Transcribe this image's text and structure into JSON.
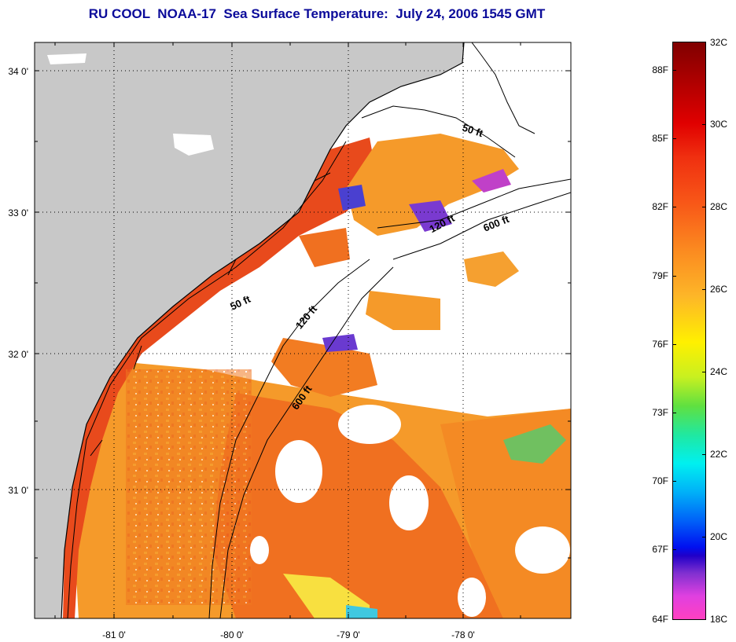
{
  "title": "RU COOL  NOAA-17  Sea Surface Temperature:  July 24, 2006 1545 GMT",
  "map": {
    "latitude_labels": [
      "34 0'",
      "33 0'",
      "32 0'",
      "31 0'"
    ],
    "longitude_labels": [
      "-81 0'",
      "-80 0'",
      "-79 0'",
      "-78 0'"
    ],
    "contour_labels": {
      "c50_north": "50 ft",
      "c120_north": "120 ft",
      "c600_north": "600 ft",
      "c50_south": "50 ft",
      "c120_south": "120 ft",
      "c600_south": "600 ft"
    },
    "colors": {
      "land": "#c8c8c8",
      "no_data": "#ffffff",
      "warm": "#f05a1c",
      "warmest": "#e03818",
      "mid": "#f89a28",
      "cool": "#6040c0"
    }
  },
  "colorbar": {
    "fahrenheit_labels": [
      "88F",
      "85F",
      "82F",
      "79F",
      "76F",
      "73F",
      "70F",
      "67F",
      "64F"
    ],
    "celsius_labels": [
      "32C",
      "30C",
      "28C",
      "26C",
      "24C",
      "22C",
      "20C",
      "18C"
    ],
    "range_celsius": [
      18,
      32
    ]
  }
}
